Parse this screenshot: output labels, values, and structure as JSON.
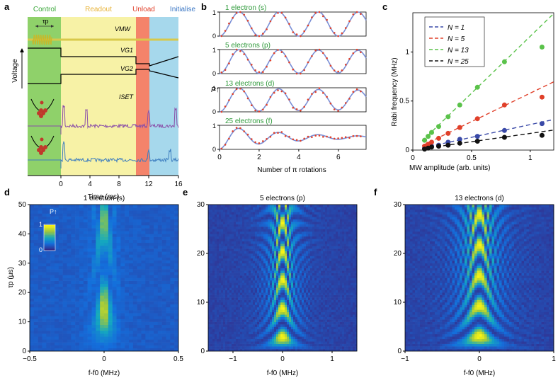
{
  "panel_labels": {
    "a": "a",
    "b": "b",
    "c": "c",
    "d": "d",
    "e": "e",
    "f": "f"
  },
  "panel_a": {
    "phases": [
      {
        "label": "Control",
        "color": "#3aa83a"
      },
      {
        "label": "Readout",
        "color": "#e8b43a"
      },
      {
        "label": "Unload",
        "color": "#e0402a"
      },
      {
        "label": "Initialise",
        "color": "#3a76c4"
      }
    ],
    "tau_label": "τp",
    "trace_labels": {
      "vmw": "VMW",
      "vg1": "VG1",
      "vg2": "VG2",
      "iset": "ISET"
    },
    "ylabel": "Voltage",
    "xlabel": "Time (ms)",
    "xticks": [
      "0",
      "4",
      "8",
      "12",
      "16"
    ],
    "colors": {
      "control_bg": "#8fd16a",
      "readout_bg": "#f7f2a6",
      "unload_bg": "#f4836a",
      "init_bg": "#a6d8ec",
      "mw": "#d8c94a",
      "iset_purple": "#8a4ea8",
      "iset_blue": "#3d7dbf"
    }
  },
  "chart_data": [
    {
      "panel": "b",
      "type": "line",
      "ylabel": "P↑",
      "xlabel": "Number of π rotations",
      "xlim": [
        0,
        7.4
      ],
      "ylim": [
        0,
        1
      ],
      "xticks": [
        "0",
        "2",
        "4",
        "6"
      ],
      "yticks": [
        "0",
        "1"
      ],
      "series": [
        {
          "name": "1 electron (s)",
          "decay": 0
        },
        {
          "name": "5 electrons (p)",
          "decay": 0.01
        },
        {
          "name": "13 electrons (d)",
          "decay": 0.03
        },
        {
          "name": "25 electrons (f)",
          "decay": 0.3
        }
      ],
      "fit_color": "#7b8fd6",
      "data_color": "#e0402a",
      "title_color": "#2e9a3a"
    },
    {
      "panel": "c",
      "type": "scatter",
      "xlabel": "MW amplitude (arb. units)",
      "ylabel": "Rabi frequency (MHz)",
      "xlim": [
        0,
        1.2
      ],
      "ylim": [
        0,
        1.4
      ],
      "xticks": [
        "0",
        "0.5",
        "1"
      ],
      "yticks": [
        "0",
        "0.5",
        "1"
      ],
      "legend": [
        "N = 1",
        "N = 5",
        "N = 13",
        "N = 25"
      ],
      "series": [
        {
          "name": "N = 1",
          "color": "#3a4aa8",
          "slope": 0.26,
          "x": [
            0.1,
            0.13,
            0.16,
            0.22,
            0.3,
            0.4,
            0.55,
            0.78,
            1.1
          ],
          "y": [
            0.02,
            0.03,
            0.04,
            0.05,
            0.08,
            0.11,
            0.14,
            0.2,
            0.27
          ]
        },
        {
          "name": "N = 5",
          "color": "#e0402a",
          "slope": 0.58,
          "x": [
            0.1,
            0.13,
            0.16,
            0.22,
            0.3,
            0.4,
            0.55,
            0.78,
            1.1
          ],
          "y": [
            0.04,
            0.06,
            0.08,
            0.12,
            0.17,
            0.23,
            0.32,
            0.46,
            0.54
          ]
        },
        {
          "name": "N = 13",
          "color": "#5ac24a",
          "slope": 1.16,
          "x": [
            0.1,
            0.13,
            0.16,
            0.22,
            0.3,
            0.4,
            0.55,
            0.78,
            1.1
          ],
          "y": [
            0.1,
            0.14,
            0.18,
            0.24,
            0.34,
            0.46,
            0.64,
            0.9,
            1.05
          ]
        },
        {
          "name": "N = 25",
          "color": "#111111",
          "slope": 0.17,
          "x": [
            0.1,
            0.13,
            0.16,
            0.22,
            0.3,
            0.4,
            0.55,
            0.78,
            1.1
          ],
          "y": [
            0.01,
            0.02,
            0.03,
            0.04,
            0.05,
            0.07,
            0.09,
            0.13,
            0.15
          ]
        }
      ]
    },
    {
      "panel": "d",
      "type": "heatmap",
      "title": "1 electron (s)",
      "xlabel": "f-f0 (MHz)",
      "ylabel": "τp (μs)",
      "xlim": [
        -0.5,
        0.5
      ],
      "ylim": [
        0,
        50
      ],
      "xticks": [
        "-0.5",
        "0",
        "0.5"
      ],
      "yticks": [
        "0",
        "10",
        "20",
        "30",
        "40",
        "50"
      ],
      "colorbar": {
        "label": "P↑",
        "max": "1",
        "min": "0"
      }
    },
    {
      "panel": "e",
      "type": "heatmap",
      "title": "5 electrons (p)",
      "xlabel": "f-f0 (MHz)",
      "xlim": [
        -1.5,
        1.5
      ],
      "ylim": [
        0,
        30
      ],
      "xticks": [
        "-1",
        "0",
        "1"
      ],
      "yticks": [
        "0",
        "10",
        "20",
        "30"
      ]
    },
    {
      "panel": "f",
      "type": "heatmap",
      "title": "13 electrons (d)",
      "xlabel": "f-f0 (MHz)",
      "xlim": [
        -1,
        1
      ],
      "ylim": [
        0,
        30
      ],
      "xticks": [
        "-1",
        "0",
        "1"
      ],
      "yticks": [
        "0",
        "10",
        "20",
        "30"
      ]
    }
  ]
}
